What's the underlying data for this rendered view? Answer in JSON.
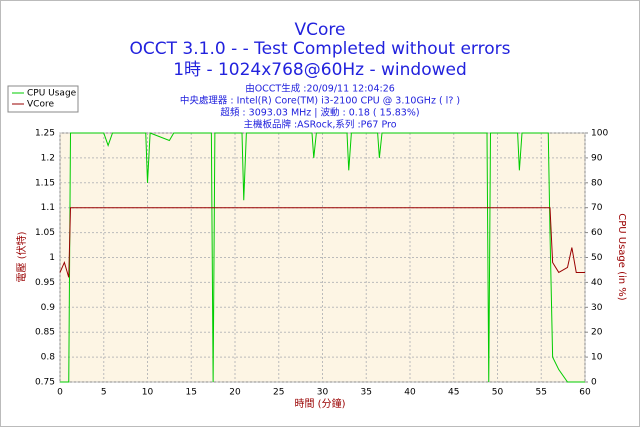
{
  "chart_data": {
    "type": "line",
    "title": "VCore",
    "subtitle": [
      "OCCT 3.1.0 -  - Test Completed without errors",
      "1時 - 1024x768@60Hz - windowed"
    ],
    "info": [
      "由OCCT生成 :20/09/11 12:04:26",
      "中央處理器 : Intel(R) Core(TM) i3-2100 CPU @ 3.10GHz (   l? )",
      "超頻 : 3093.03 MHz | 波動 : 0.18 ( 15.83%)",
      "主機板品牌 :ASRock,系列 :P67 Pro"
    ],
    "xlabel": "時間 (分鐘)",
    "ylabel": "電壓 (伏特)",
    "y2label": "CPU Usage (in %)",
    "x": [
      0,
      0.5,
      1,
      1.2,
      3,
      5,
      5.5,
      6,
      9.8,
      10,
      10.3,
      12.5,
      13,
      17.3,
      17.5,
      17.7,
      20.8,
      21,
      21.3,
      28.8,
      29,
      29.3,
      32.8,
      33,
      33.3,
      36.3,
      36.5,
      36.8,
      48.8,
      49,
      49.2,
      52.3,
      52.5,
      52.8,
      55.8,
      56,
      56.3,
      57,
      58,
      58.5,
      59,
      60
    ],
    "series": [
      {
        "name": "CPU Usage",
        "color": "#00cc00",
        "axis": "y2",
        "values": [
          0,
          0,
          0,
          100,
          100,
          100,
          95,
          100,
          100,
          80,
          100,
          97,
          100,
          100,
          0,
          100,
          100,
          73,
          100,
          100,
          90,
          100,
          100,
          85,
          100,
          100,
          90,
          100,
          100,
          0,
          100,
          100,
          85,
          100,
          100,
          60,
          10,
          5,
          0,
          0,
          0,
          0
        ]
      },
      {
        "name": "VCore",
        "color": "#990000",
        "values": [
          0.97,
          0.99,
          0.96,
          1.1,
          1.1,
          1.1,
          1.1,
          1.1,
          1.1,
          1.1,
          1.1,
          1.1,
          1.1,
          1.1,
          1.1,
          1.1,
          1.1,
          1.1,
          1.1,
          1.1,
          1.1,
          1.1,
          1.1,
          1.1,
          1.1,
          1.1,
          1.1,
          1.1,
          1.1,
          1.1,
          1.1,
          1.1,
          1.1,
          1.1,
          1.1,
          1.1,
          0.99,
          0.97,
          0.98,
          1.02,
          0.97,
          0.97
        ]
      }
    ],
    "xlim": [
      0,
      60
    ],
    "xticks": [
      0,
      5,
      10,
      15,
      20,
      25,
      30,
      35,
      40,
      45,
      50,
      55,
      60
    ],
    "ylim": [
      0.75,
      1.25
    ],
    "yticks": [
      0.75,
      0.8,
      0.85,
      0.9,
      0.95,
      1,
      1.05,
      1.1,
      1.15,
      1.2,
      1.25
    ],
    "y2lim": [
      0,
      100
    ],
    "y2ticks": [
      0,
      10,
      20,
      30,
      40,
      50,
      60,
      70,
      80,
      90,
      100
    ],
    "grid": true,
    "legend": "upper left"
  }
}
